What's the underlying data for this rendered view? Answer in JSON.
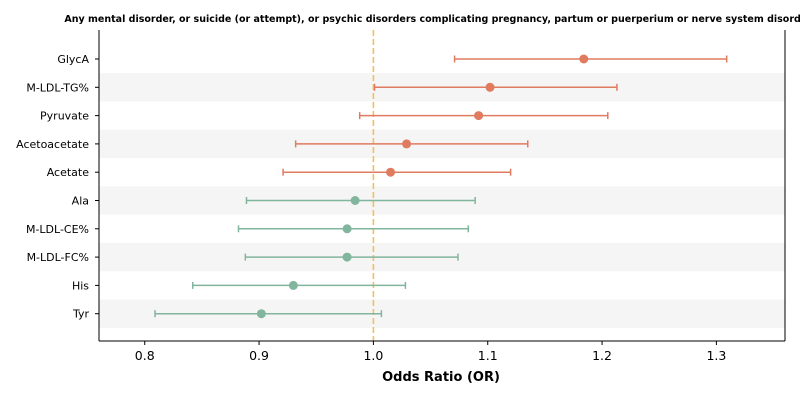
{
  "chart_data": {
    "type": "forest",
    "title": "Any mental disorder, or suicide (or attempt), or psychic disorders complicating pregnancy, partum or puerperium or nerve system disorders",
    "xlabel": "Odds Ratio (OR)",
    "ylabel": "",
    "xlim": [
      0.76,
      1.36
    ],
    "xticks": [
      0.8,
      0.9,
      1.0,
      1.1,
      1.2,
      1.3
    ],
    "xtick_labels": [
      "0.8",
      "0.9",
      "1.0",
      "1.1",
      "1.2",
      "1.3"
    ],
    "reference_line": 1.0,
    "grid": false,
    "colors": {
      "positive": "#e07b5f",
      "negative": "#82b59d",
      "reference": "#f0c060",
      "band": "#f5f5f5"
    },
    "rows": [
      {
        "label": "GlycA",
        "or": 1.184,
        "ci_low": 1.071,
        "ci_high": 1.309
      },
      {
        "label": "M-LDL-TG%",
        "or": 1.102,
        "ci_low": 1.001,
        "ci_high": 1.213
      },
      {
        "label": "Pyruvate",
        "or": 1.092,
        "ci_low": 0.988,
        "ci_high": 1.205
      },
      {
        "label": "Acetoacetate",
        "or": 1.029,
        "ci_low": 0.932,
        "ci_high": 1.135
      },
      {
        "label": "Acetate",
        "or": 1.015,
        "ci_low": 0.921,
        "ci_high": 1.12
      },
      {
        "label": "Ala",
        "or": 0.984,
        "ci_low": 0.889,
        "ci_high": 1.089
      },
      {
        "label": "M-LDL-CE%",
        "or": 0.977,
        "ci_low": 0.882,
        "ci_high": 1.083
      },
      {
        "label": "M-LDL-FC%",
        "or": 0.977,
        "ci_low": 0.888,
        "ci_high": 1.074
      },
      {
        "label": "His",
        "or": 0.93,
        "ci_low": 0.842,
        "ci_high": 1.028
      },
      {
        "label": "Tyr",
        "or": 0.902,
        "ci_low": 0.809,
        "ci_high": 1.007
      }
    ]
  }
}
